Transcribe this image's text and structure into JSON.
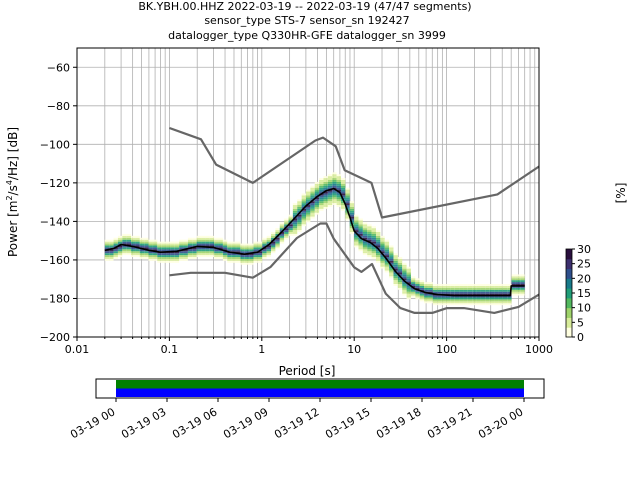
{
  "chart_data": [
    {
      "type": "heatmap",
      "title_lines": [
        "BK.YBH.00.HHZ   2022-03-19 -- 2022-03-19  (47/47 segments)",
        "sensor_type STS-7 sensor_sn 192427",
        "datalogger_type Q330HR-GFE datalogger_sn 3999"
      ],
      "xlabel": "Period [s]",
      "ylabel_parts": [
        "Power [m",
        "2",
        "/s",
        "4",
        "/Hz] [dB]"
      ],
      "x_scale": "log",
      "xlim": [
        0.01,
        1000
      ],
      "ylim": [
        -200,
        -50
      ],
      "x_tick_labels": [
        "0.01",
        "0.1",
        "1",
        "10",
        "100",
        "1000"
      ],
      "y_ticks": [
        -60,
        -80,
        -100,
        -120,
        -140,
        -160,
        -180,
        -200
      ],
      "y_tick_labels": [
        "−60",
        "−80",
        "−100",
        "−120",
        "−140",
        "−160",
        "−180",
        "−200"
      ],
      "grid": true,
      "colorbar": {
        "label": "[%]",
        "range": [
          0,
          30
        ],
        "ticks": [
          0,
          5,
          10,
          15,
          20,
          25,
          30
        ],
        "tick_labels": [
          "0",
          "5",
          "10",
          "15",
          "20",
          "25",
          "30"
        ],
        "colors": [
          "#ffffe0",
          "#d8ec9a",
          "#9fd36a",
          "#52b85f",
          "#1f9d78",
          "#187a8a",
          "#2e4f8c",
          "#3c2f6e",
          "#2a0f3e"
        ]
      },
      "series": [
        {
          "kind": "NHNM",
          "color": "#666666",
          "points": [
            [
              0.1,
              -91.5
            ],
            [
              0.22,
              -97.4
            ],
            [
              0.32,
              -110.5
            ],
            [
              0.8,
              -120
            ],
            [
              3.8,
              -98
            ],
            [
              4.6,
              -96.5
            ],
            [
              6.3,
              -101
            ],
            [
              7.9,
              -113.5
            ],
            [
              15.4,
              -120
            ],
            [
              20,
              -138
            ],
            [
              354.8,
              -126
            ],
            [
              1000,
              -111.5
            ]
          ]
        },
        {
          "kind": "NLNM",
          "color": "#666666",
          "points": [
            [
              0.1,
              -168
            ],
            [
              0.17,
              -166.7
            ],
            [
              0.4,
              -166.7
            ],
            [
              0.8,
              -169.2
            ],
            [
              1.24,
              -163.7
            ],
            [
              2.4,
              -148.6
            ],
            [
              4.3,
              -141.1
            ],
            [
              5,
              -141.1
            ],
            [
              6,
              -149
            ],
            [
              10,
              -163.8
            ],
            [
              12,
              -166.2
            ],
            [
              15.6,
              -162.1
            ],
            [
              21.9,
              -177.5
            ],
            [
              31.6,
              -185
            ],
            [
              45,
              -187.5
            ],
            [
              70,
              -187.5
            ],
            [
              101,
              -185
            ],
            [
              154,
              -185
            ],
            [
              328,
              -187.5
            ],
            [
              600,
              -184.4
            ],
            [
              1000,
              -178
            ]
          ]
        },
        {
          "kind": "mode",
          "color": "#000000",
          "points": [
            [
              0.02,
              -155
            ],
            [
              0.025,
              -154
            ],
            [
              0.03,
              -152
            ],
            [
              0.04,
              -153
            ],
            [
              0.06,
              -155
            ],
            [
              0.08,
              -156
            ],
            [
              0.12,
              -155.5
            ],
            [
              0.2,
              -153
            ],
            [
              0.3,
              -153.5
            ],
            [
              0.45,
              -156
            ],
            [
              0.65,
              -157
            ],
            [
              0.9,
              -156
            ],
            [
              1.2,
              -152
            ],
            [
              1.6,
              -146
            ],
            [
              2.2,
              -139
            ],
            [
              3,
              -132
            ],
            [
              4,
              -127
            ],
            [
              5,
              -124
            ],
            [
              6,
              -123
            ],
            [
              7,
              -125
            ],
            [
              8,
              -131
            ],
            [
              9,
              -138
            ],
            [
              10,
              -145
            ],
            [
              12,
              -149
            ],
            [
              15,
              -151
            ],
            [
              18,
              -154
            ],
            [
              22,
              -159
            ],
            [
              28,
              -166
            ],
            [
              35,
              -171
            ],
            [
              45,
              -175
            ],
            [
              60,
              -177
            ],
            [
              80,
              -178
            ],
            [
              120,
              -178.5
            ],
            [
              200,
              -178.5
            ],
            [
              350,
              -178.5
            ],
            [
              490,
              -178.5
            ],
            [
              500,
              -173.5
            ],
            [
              700,
              -173.5
            ]
          ]
        }
      ]
    },
    {
      "type": "timeline",
      "x_tick_labels": [
        "03-19 00",
        "03-19 03",
        "03-19 06",
        "03-19 09",
        "03-19 12",
        "03-19 15",
        "03-19 18",
        "03-19 21",
        "03-20 00"
      ],
      "bands": [
        {
          "color": "#008000",
          "coverage": [
            0,
            1
          ]
        },
        {
          "color": "#0000ff",
          "coverage": [
            0,
            1
          ]
        }
      ]
    }
  ]
}
